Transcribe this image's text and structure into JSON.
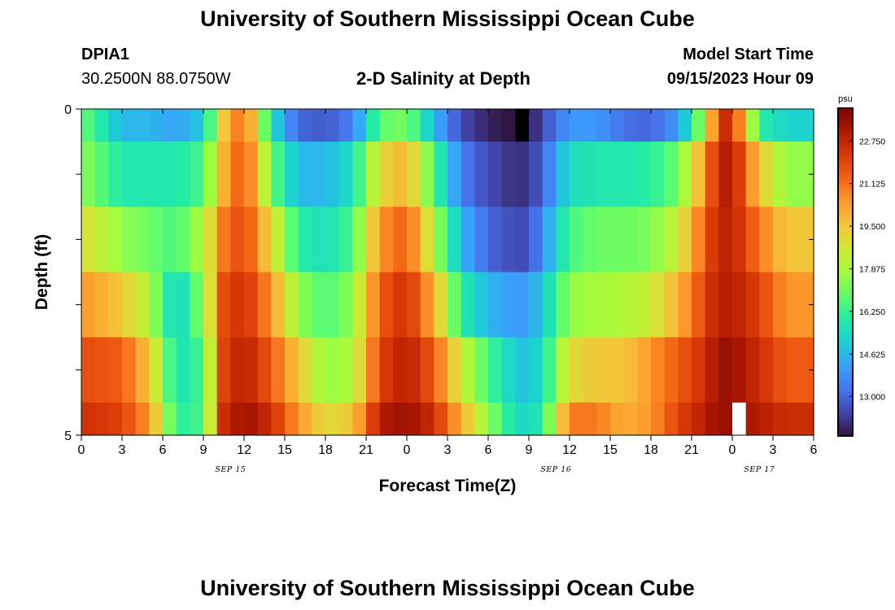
{
  "header": {
    "title": "University of Southern Mississippi Ocean Cube",
    "station_id": "DPIA1",
    "coordinates": "30.2500N  88.0750W",
    "chart_title": "2-D Salinity at Depth",
    "model_start_label": "Model Start Time",
    "model_start_value": "09/15/2023 Hour 09"
  },
  "footer": {
    "title": "University of Southern Mississippi Ocean Cube"
  },
  "chart_data": {
    "type": "heatmap",
    "title": "2-D Salinity at Depth",
    "xlabel": "Forecast Time(Z)",
    "ylabel": "Depth (ft)",
    "x_tick_labels": [
      "0",
      "3",
      "6",
      "9",
      "12",
      "15",
      "18",
      "21",
      "0",
      "3",
      "6",
      "9",
      "12",
      "15",
      "18",
      "21",
      "0",
      "3",
      "6"
    ],
    "date_labels": [
      {
        "text": "SEP 15",
        "hour": 11
      },
      {
        "text": "SEP 16",
        "hour": 35
      },
      {
        "text": "SEP 17",
        "hour": 50
      }
    ],
    "x_range_hours": [
      0,
      54
    ],
    "y_tick_labels": [
      "0",
      "5"
    ],
    "ylim": [
      0,
      5
    ],
    "depth_layers_ft": [
      0,
      1,
      2,
      3,
      4,
      5
    ],
    "colorbar": {
      "unit": "psu",
      "ticks": [
        "22.750",
        "21.125",
        "19.500",
        "17.875",
        "16.250",
        "14.625",
        "13.000"
      ],
      "range": [
        11.5,
        24.0
      ]
    },
    "control_hours": [
      0,
      3,
      5,
      7,
      9,
      10.5,
      12,
      14,
      16,
      18,
      20,
      22,
      24,
      26,
      28,
      30,
      32,
      33,
      34,
      36,
      38,
      40,
      42,
      44,
      46,
      47,
      48,
      50,
      52,
      54
    ],
    "layer_values": [
      [
        17.0,
        14.6,
        14.6,
        14.2,
        15.0,
        19.5,
        21.5,
        15.5,
        13.0,
        12.8,
        13.5,
        16.8,
        17.2,
        14.6,
        12.5,
        11.8,
        11.5,
        11.6,
        12.5,
        14.0,
        14.0,
        13.2,
        13.0,
        14.0,
        18.0,
        22.5,
        22.5,
        16.0,
        15.2,
        15.2
      ],
      [
        17.5,
        15.8,
        15.8,
        15.8,
        16.5,
        20.0,
        21.8,
        17.0,
        14.6,
        14.6,
        15.5,
        19.0,
        20.0,
        16.5,
        13.5,
        12.5,
        12.0,
        12.1,
        13.0,
        15.5,
        15.8,
        15.8,
        16.0,
        17.0,
        20.5,
        23.0,
        23.0,
        19.5,
        17.5,
        17.5
      ],
      [
        19.0,
        17.5,
        17.0,
        16.5,
        18.0,
        21.0,
        22.0,
        19.0,
        16.0,
        15.5,
        16.5,
        20.5,
        21.5,
        18.0,
        14.6,
        13.0,
        12.5,
        12.6,
        13.8,
        16.5,
        17.0,
        17.0,
        17.2,
        18.5,
        21.5,
        22.8,
        22.8,
        21.0,
        19.5,
        19.5
      ],
      [
        20.5,
        19.5,
        18.0,
        15.0,
        17.5,
        21.8,
        22.5,
        20.5,
        17.5,
        16.5,
        17.5,
        21.5,
        22.5,
        20.0,
        16.0,
        14.6,
        14.0,
        14.1,
        15.0,
        17.5,
        17.8,
        18.0,
        18.5,
        20.0,
        22.0,
        23.0,
        23.0,
        22.0,
        20.5,
        20.5
      ],
      [
        21.8,
        21.5,
        19.5,
        15.5,
        16.5,
        22.0,
        23.0,
        21.5,
        19.5,
        17.5,
        18.0,
        22.0,
        23.0,
        21.5,
        18.5,
        16.5,
        15.0,
        14.8,
        15.5,
        19.0,
        19.5,
        19.5,
        20.5,
        21.5,
        22.5,
        23.5,
        23.5,
        22.5,
        21.5,
        21.5
      ],
      [
        22.5,
        22.0,
        20.5,
        16.0,
        16.5,
        22.5,
        23.5,
        22.5,
        20.5,
        19.0,
        19.5,
        23.0,
        23.5,
        22.5,
        20.0,
        17.5,
        15.5,
        15.3,
        16.0,
        21.0,
        21.0,
        20.0,
        20.5,
        22.0,
        23.0,
        23.5,
        23.5,
        23.0,
        22.5,
        22.5
      ]
    ],
    "missing_cells": [
      {
        "hour": 32,
        "layer": 0,
        "color": "#000000"
      },
      {
        "hour": 48,
        "layer": 5,
        "color": "#ffffff"
      }
    ],
    "colors": {
      "frame": "#000000",
      "palette": [
        "#30123b",
        "#4145ab",
        "#4675ed",
        "#39a2fc",
        "#1bcfd4",
        "#24eca6",
        "#61fc6c",
        "#a4fc3b",
        "#d1e834",
        "#f3c63a",
        "#fe9b2d",
        "#f36315",
        "#d93806",
        "#b11901",
        "#7a0403"
      ]
    }
  }
}
